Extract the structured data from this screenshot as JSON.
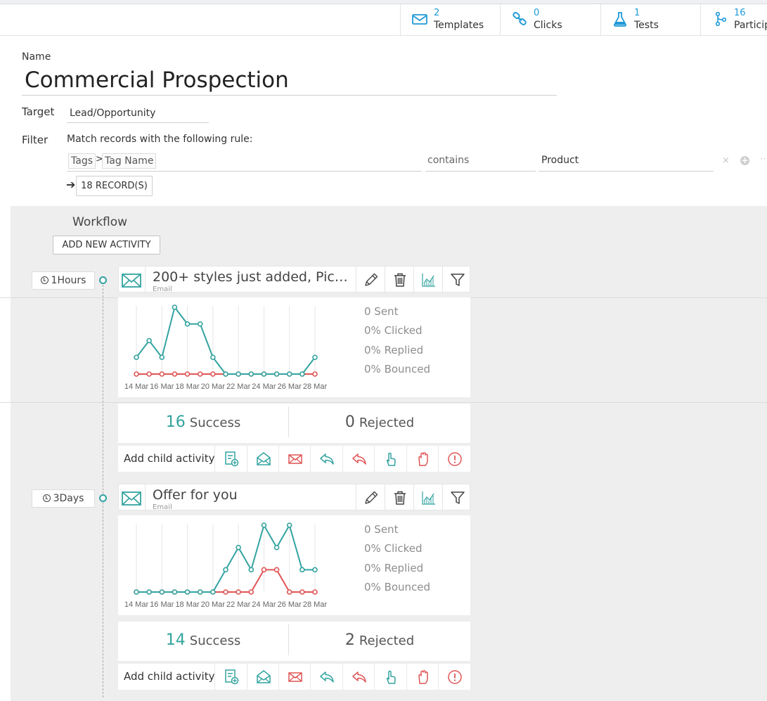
{
  "stats": [
    {
      "icon": "envelope-icon",
      "count": "2",
      "label": "Templates"
    },
    {
      "icon": "link-icon",
      "count": "0",
      "label": "Clicks"
    },
    {
      "icon": "flask-icon",
      "count": "1",
      "label": "Tests"
    },
    {
      "icon": "branch-icon",
      "count": "16",
      "label": "Participants"
    }
  ],
  "form": {
    "name_label": "Name",
    "name_value": "Commercial Prospection",
    "target_label": "Target",
    "target_value": "Lead/Opportunity",
    "filter_label": "Filter",
    "filter_rule_text": "Match records with the following rule:",
    "rule": {
      "field_path": [
        "Tags",
        "Tag Name"
      ],
      "path_separator": ">",
      "operator": "contains",
      "value": "Product",
      "remove_symbol": "×",
      "add_symbol": "+",
      "more_symbol": "⋯"
    },
    "records_arrow": "➔",
    "records_button": "18 RECORD(S)"
  },
  "workflow": {
    "title": "Workflow",
    "add_button": "ADD NEW ACTIVITY",
    "colors": {
      "success": "#33a3a0",
      "rejected": "#e05555",
      "accent": "#1f9ad6"
    },
    "activities": [
      {
        "delay": "1Hours",
        "title": "200+ styles just added, Pick ...",
        "type": "Email",
        "metrics": [
          "0 Sent",
          "0% Clicked",
          "0% Replied",
          "0% Bounced"
        ],
        "success_count": "16",
        "success_label": "Success",
        "rejected_count": "0",
        "rejected_label": "Rejected",
        "add_child_label": "Add child activity"
      },
      {
        "delay": "3Days",
        "title": "Offer for you",
        "type": "Email",
        "metrics": [
          "0 Sent",
          "0% Clicked",
          "0% Replied",
          "0% Bounced"
        ],
        "success_count": "14",
        "success_label": "Success",
        "rejected_count": "2",
        "rejected_label": "Rejected",
        "add_child_label": "Add child activity"
      }
    ]
  },
  "chart_data": [
    {
      "type": "line",
      "title": "",
      "x": [
        "14 Mar",
        "15 Mar",
        "16 Mar",
        "17 Mar",
        "18 Mar",
        "19 Mar",
        "20 Mar",
        "21 Mar",
        "22 Mar",
        "23 Mar",
        "24 Mar",
        "25 Mar",
        "26 Mar",
        "27 Mar",
        "28 Mar"
      ],
      "tick_labels": [
        "14 Mar",
        "16 Mar",
        "18 Mar",
        "20 Mar",
        "22 Mar",
        "24 Mar",
        "26 Mar",
        "28 Mar"
      ],
      "series": [
        {
          "name": "Success",
          "color": "#33a3a0",
          "values": [
            1,
            2,
            1,
            4,
            3,
            3,
            1,
            0,
            0,
            0,
            0,
            0,
            0,
            0,
            1
          ]
        },
        {
          "name": "Rejected",
          "color": "#e05555",
          "values": [
            0,
            0,
            0,
            0,
            0,
            0,
            0,
            0,
            0,
            0,
            0,
            0,
            0,
            0,
            0
          ]
        }
      ],
      "ylim": [
        0,
        4
      ]
    },
    {
      "type": "line",
      "title": "",
      "x": [
        "14 Mar",
        "15 Mar",
        "16 Mar",
        "17 Mar",
        "18 Mar",
        "19 Mar",
        "20 Mar",
        "21 Mar",
        "22 Mar",
        "23 Mar",
        "24 Mar",
        "25 Mar",
        "26 Mar",
        "27 Mar",
        "28 Mar"
      ],
      "tick_labels": [
        "14 Mar",
        "16 Mar",
        "18 Mar",
        "20 Mar",
        "22 Mar",
        "24 Mar",
        "26 Mar",
        "28 Mar"
      ],
      "series": [
        {
          "name": "Success",
          "color": "#33a3a0",
          "values": [
            0,
            0,
            0,
            0,
            0,
            0,
            0,
            1,
            2,
            1,
            3,
            2,
            3,
            1,
            1
          ]
        },
        {
          "name": "Rejected",
          "color": "#e05555",
          "values": [
            0,
            0,
            0,
            0,
            0,
            0,
            0,
            0,
            0,
            0,
            1,
            1,
            0,
            0,
            0
          ]
        }
      ],
      "ylim": [
        0,
        3
      ]
    }
  ]
}
